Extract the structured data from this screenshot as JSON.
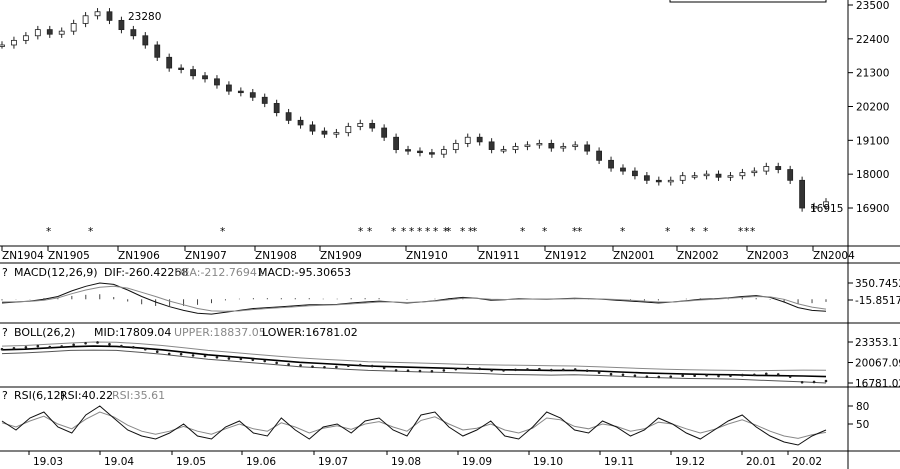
{
  "chart_data": [
    {
      "type": "candlestick",
      "panel": "price",
      "ylim": [
        16300,
        23500
      ],
      "yticks": [
        "23500",
        "22400",
        "21300",
        "20200",
        "19100",
        "18000",
        "16900"
      ],
      "contract_labels": [
        "ZN1904",
        "ZN1905",
        "ZN1906",
        "ZN1907",
        "ZN1908",
        "ZN1909",
        "ZN1910",
        "ZN1911",
        "ZN1912",
        "ZN2001",
        "ZN2002",
        "ZN2003",
        "ZN2004"
      ],
      "high_annotation": "23280",
      "low_annotation": "16915",
      "close_series": [
        22200,
        22350,
        22500,
        22700,
        22550,
        22650,
        22900,
        23150,
        23280,
        23000,
        22700,
        22500,
        22200,
        21800,
        21450,
        21400,
        21200,
        21100,
        20900,
        20700,
        20650,
        20500,
        20300,
        20000,
        19750,
        19600,
        19400,
        19300,
        19350,
        19550,
        19650,
        19500,
        19200,
        18800,
        18750,
        18700,
        18650,
        18800,
        19000,
        19200,
        19050,
        18800,
        18800,
        18900,
        18950,
        19000,
        18850,
        18900,
        18950,
        18750,
        18450,
        18200,
        18100,
        17950,
        17800,
        17750,
        17800,
        17950,
        17950,
        18000,
        17900,
        17950,
        18050,
        18100,
        18250,
        18150,
        17800,
        16900,
        16950,
        17100
      ],
      "markers_label": "*",
      "marker_count": 25
    },
    {
      "type": "line",
      "panel": "MACD",
      "title": "MACD(12,26,9)",
      "dif_label": "DIF:-260.42268",
      "dea_label": "DEA:-212.76941",
      "macd_label": "MACD:-95.30653",
      "yticks": [
        "350.7452",
        "-15.8517"
      ],
      "series": [
        {
          "name": "DIF",
          "values": [
            -80,
            -60,
            -40,
            0,
            60,
            180,
            280,
            350,
            320,
            200,
            60,
            -60,
            -160,
            -240,
            -300,
            -320,
            -280,
            -240,
            -200,
            -180,
            -160,
            -140,
            -120,
            -120,
            -110,
            -80,
            -60,
            -40,
            -60,
            -80,
            -60,
            -30,
            10,
            40,
            20,
            -20,
            -10,
            10,
            5,
            0,
            10,
            20,
            15,
            0,
            -20,
            -40,
            -60,
            -80,
            -60,
            -30,
            0,
            10,
            30,
            60,
            80,
            40,
            -60,
            -180,
            -240,
            -260
          ]
        },
        {
          "name": "DEA",
          "values": [
            -60,
            -55,
            -45,
            -20,
            30,
            120,
            200,
            260,
            280,
            240,
            150,
            60,
            -40,
            -120,
            -200,
            -250,
            -260,
            -250,
            -220,
            -200,
            -180,
            -160,
            -140,
            -130,
            -120,
            -100,
            -80,
            -60,
            -60,
            -70,
            -60,
            -40,
            -10,
            20,
            20,
            0,
            -5,
            0,
            5,
            0,
            5,
            10,
            10,
            5,
            -5,
            -20,
            -40,
            -60,
            -60,
            -40,
            -15,
            0,
            20,
            40,
            60,
            50,
            0,
            -100,
            -170,
            -212
          ]
        }
      ]
    },
    {
      "type": "line",
      "panel": "BOLL",
      "title": "BOLL(26,2)",
      "mid_label": "MID:17809.04",
      "upper_label": "UPPER:18837.05",
      "lower_label": "LOWER:16781.02",
      "yticks": [
        "23353.17",
        "20067.09",
        "16781.02"
      ],
      "series": [
        {
          "name": "MID",
          "values": [
            22100,
            22200,
            22400,
            22600,
            22700,
            22650,
            22400,
            22100,
            21700,
            21300,
            21000,
            20700,
            20400,
            20100,
            19900,
            19700,
            19500,
            19400,
            19300,
            19200,
            19100,
            19000,
            18900,
            18850,
            18800,
            18800,
            18700,
            18550,
            18400,
            18300,
            18200,
            18150,
            18100,
            18000,
            17950,
            17900,
            17809
          ]
        },
        {
          "name": "UPPER",
          "values": [
            22700,
            22800,
            23000,
            23200,
            23353,
            23300,
            23100,
            22800,
            22400,
            22000,
            21700,
            21400,
            21100,
            20800,
            20600,
            20400,
            20200,
            20100,
            20000,
            19900,
            19800,
            19700,
            19650,
            19600,
            19550,
            19500,
            19400,
            19250,
            19100,
            19000,
            18900,
            18850,
            18800,
            18750,
            18800,
            18850,
            18837
          ]
        },
        {
          "name": "LOWER",
          "values": [
            21500,
            21600,
            21800,
            22000,
            22050,
            22000,
            21700,
            21400,
            21000,
            20600,
            20300,
            20000,
            19700,
            19400,
            19200,
            19000,
            18800,
            18700,
            18600,
            18500,
            18400,
            18300,
            18150,
            18100,
            18050,
            18100,
            18000,
            17850,
            17700,
            17600,
            17500,
            17450,
            17400,
            17250,
            17100,
            16950,
            16781
          ]
        }
      ]
    },
    {
      "type": "line",
      "panel": "RSI",
      "title": "RSI(6,12)",
      "rsi1_label": "RSI:40.22",
      "rsi2_label": "RSI:35.61",
      "yticks": [
        "80",
        "50"
      ],
      "series": [
        {
          "name": "RSI6",
          "values": [
            55,
            40,
            60,
            70,
            45,
            35,
            65,
            80,
            60,
            40,
            30,
            25,
            35,
            50,
            30,
            25,
            45,
            55,
            35,
            30,
            60,
            40,
            25,
            45,
            50,
            35,
            55,
            60,
            40,
            30,
            65,
            70,
            45,
            30,
            40,
            55,
            30,
            25,
            45,
            70,
            60,
            40,
            35,
            55,
            45,
            30,
            40,
            60,
            50,
            35,
            25,
            40,
            55,
            65,
            45,
            30,
            20,
            15,
            30,
            40
          ]
        },
        {
          "name": "RSI12",
          "values": [
            52,
            45,
            55,
            63,
            50,
            42,
            58,
            70,
            62,
            48,
            38,
            33,
            38,
            46,
            38,
            33,
            42,
            50,
            42,
            38,
            52,
            45,
            35,
            43,
            47,
            41,
            50,
            54,
            45,
            38,
            56,
            62,
            50,
            40,
            43,
            50,
            40,
            35,
            43,
            60,
            57,
            46,
            42,
            50,
            46,
            38,
            42,
            53,
            50,
            42,
            35,
            41,
            50,
            57,
            48,
            38,
            30,
            26,
            32,
            36
          ]
        }
      ]
    },
    {
      "type": "axis",
      "panel": "time",
      "x_labels": [
        "19.03",
        "19.04",
        "19.05",
        "19.06",
        "19.07",
        "19.08",
        "19.09",
        "19.10",
        "19.11",
        "19.12",
        "20.01",
        "20.02"
      ]
    }
  ]
}
